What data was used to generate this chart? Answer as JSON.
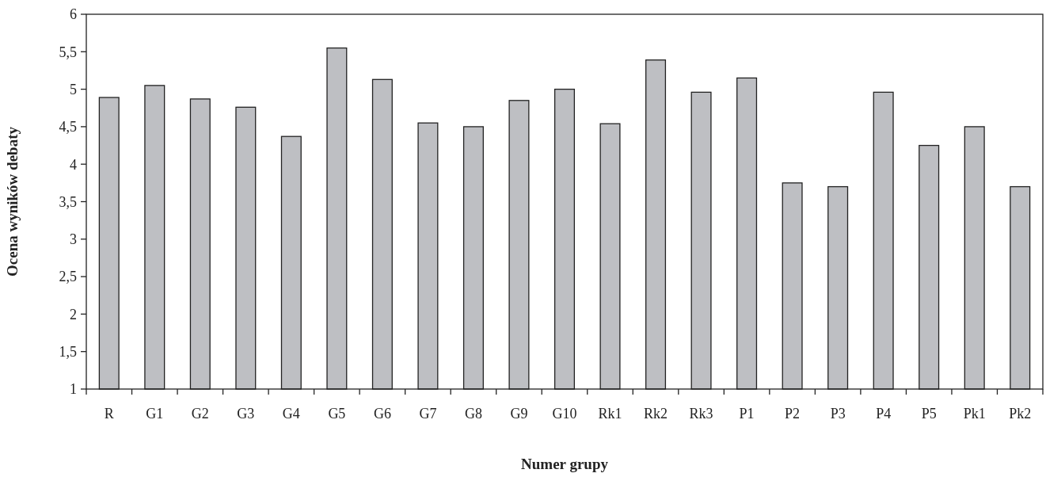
{
  "chart_data": {
    "type": "bar",
    "xlabel": "Numer grupy",
    "ylabel": "Ocena wyników debaty",
    "categories": [
      "R",
      "G1",
      "G2",
      "G3",
      "G4",
      "G5",
      "G6",
      "G7",
      "G8",
      "G9",
      "G10",
      "Rk1",
      "Rk2",
      "Rk3",
      "P1",
      "P2",
      "P3",
      "P4",
      "P5",
      "Pk1",
      "Pk2"
    ],
    "values": [
      4.89,
      5.05,
      4.87,
      4.76,
      4.37,
      5.55,
      5.13,
      4.55,
      4.5,
      4.85,
      5.0,
      4.54,
      5.39,
      4.96,
      5.15,
      3.75,
      3.7,
      4.96,
      4.25,
      4.5,
      3.7
    ],
    "color": "#bebfc3",
    "ylim": [
      1,
      6
    ],
    "yticks": [
      {
        "value": 1,
        "label": "1"
      },
      {
        "value": 1.5,
        "label": "1,5"
      },
      {
        "value": 2,
        "label": "2"
      },
      {
        "value": 2.5,
        "label": "2,5"
      },
      {
        "value": 3,
        "label": "3"
      },
      {
        "value": 3.5,
        "label": "3,5"
      },
      {
        "value": 4,
        "label": "4"
      },
      {
        "value": 4.5,
        "label": "4,5"
      },
      {
        "value": 5,
        "label": "5"
      },
      {
        "value": 5.5,
        "label": "5,5"
      },
      {
        "value": 6,
        "label": "6"
      }
    ],
    "grid": false
  }
}
